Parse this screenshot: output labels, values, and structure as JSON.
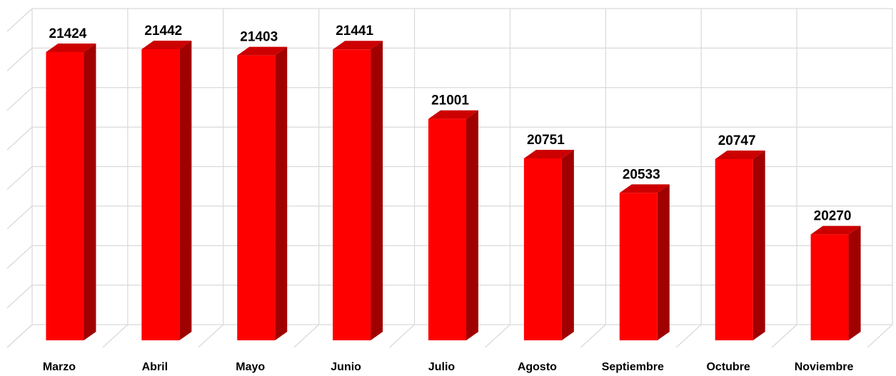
{
  "chart_data": {
    "type": "bar3d",
    "categories": [
      "Marzo",
      "Abril",
      "Mayo",
      "Junio",
      "Julio",
      "Agosto",
      "Septiembre",
      "Octubre",
      "Noviembre"
    ],
    "values": [
      21424,
      21442,
      21403,
      21441,
      21001,
      20751,
      20533,
      20747,
      20270
    ],
    "color": "#ff0000",
    "ylim": [
      19600,
      21600
    ],
    "yticks": [
      19600,
      19850,
      20100,
      20350,
      20600,
      20850,
      21100,
      21350,
      21600
    ],
    "grid": true
  }
}
